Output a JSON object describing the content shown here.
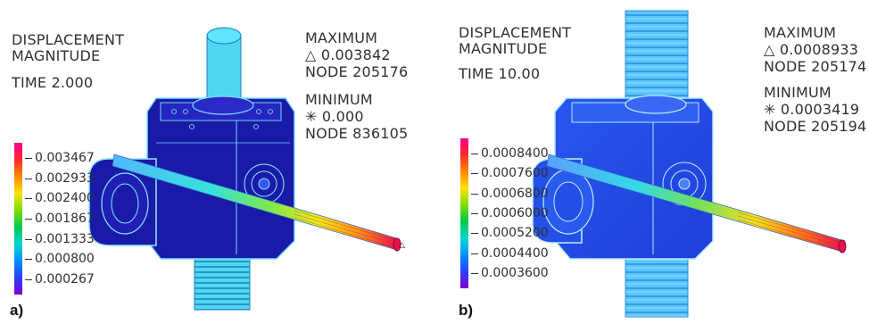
{
  "panels": [
    {
      "label": "a)",
      "title_line1": "DISPLACEMENT",
      "title_line2": "MAGNITUDE",
      "time": "TIME 2.000",
      "max_heading": "MAXIMUM",
      "max_value": "0.003842",
      "max_node": "NODE 205176",
      "min_heading": "MINIMUM",
      "min_value": "0.000",
      "min_node": "NODE 836105",
      "legend_ticks": [
        "0.003467",
        "0.002933",
        "0.002400",
        "0.001867",
        "0.001333",
        "0.000800",
        "0.000267"
      ]
    },
    {
      "label": "b)",
      "title_line1": "DISPLACEMENT",
      "title_line2": "MAGNITUDE",
      "time": "TIME 10.00",
      "max_heading": "MAXIMUM",
      "max_value": "0.0008933",
      "max_node": "NODE 205174",
      "min_heading": "MINIMUM",
      "min_value": "0.0003419",
      "min_node": "NODE 205194",
      "legend_ticks": [
        "0.0008400",
        "0.0007600",
        "0.0006800",
        "0.0006000",
        "0.0005200",
        "0.0004400",
        "0.0003600"
      ]
    }
  ],
  "max_symbol": "△",
  "min_symbol": "✳",
  "colors": {
    "body_dark": "#1a1aa8",
    "body_mid": "#2f4be6",
    "mesh_light": "#5fd8ff",
    "thread_cyan": "#4fd7f2",
    "rod_hot": "#e8104f",
    "text": "#303030",
    "legend_stops": [
      "#ff0090",
      "#ff2a2a",
      "#ff8a00",
      "#ffe100",
      "#7be000",
      "#00c850",
      "#00d8d0",
      "#0090ff",
      "#2a40ff",
      "#8000d0"
    ]
  }
}
